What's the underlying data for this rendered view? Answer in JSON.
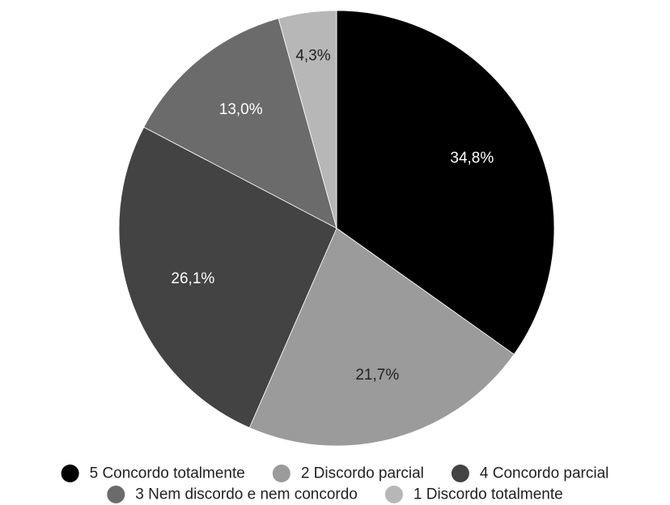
{
  "chart_data": {
    "type": "pie",
    "title": "",
    "slices": [
      {
        "label": "5 Concordo totalmente",
        "value": 34.8,
        "display": "34,8%",
        "color": "#000000",
        "label_color": "#ffffff"
      },
      {
        "label": "2 Discordo parcial",
        "value": 21.7,
        "display": "21,7%",
        "color": "#9b9b9b",
        "label_color": "#222222"
      },
      {
        "label": "4 Concordo parcial",
        "value": 26.1,
        "display": "26,1%",
        "color": "#434343",
        "label_color": "#ffffff"
      },
      {
        "label": "3 Nem discordo e nem concordo",
        "value": 13.0,
        "display": "13,0%",
        "color": "#6b6b6b",
        "label_color": "#ffffff"
      },
      {
        "label": "1 Discordo totalmente",
        "value": 4.3,
        "display": "4,3%",
        "color": "#b7b7b7",
        "label_color": "#222222"
      }
    ],
    "legend_position": "bottom"
  }
}
